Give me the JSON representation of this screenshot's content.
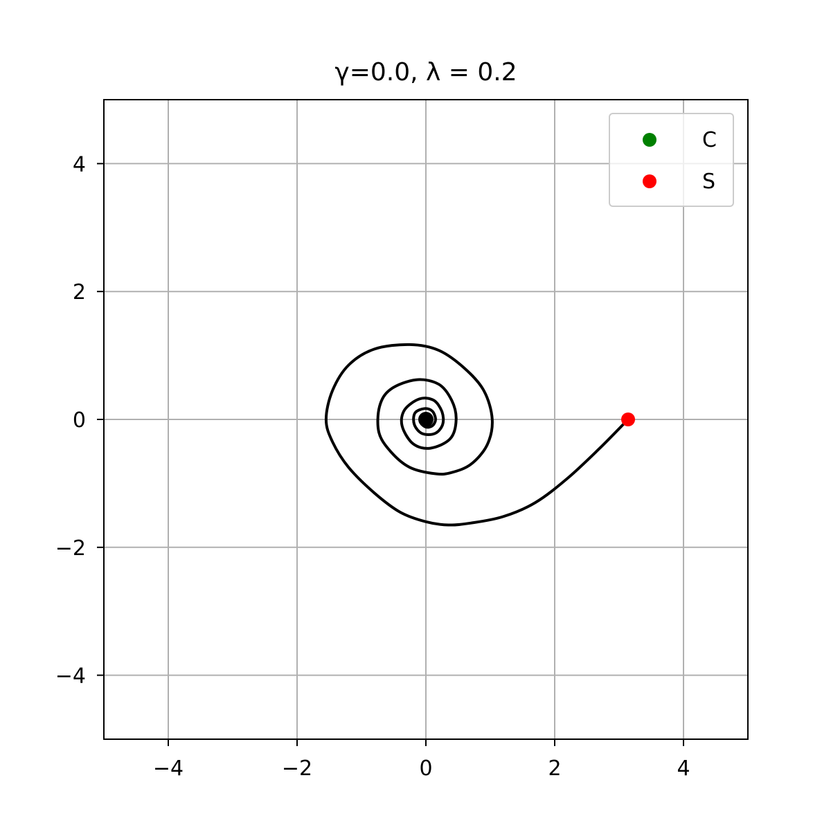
{
  "chart_data": {
    "type": "line",
    "title": "γ=0.0, λ = 0.2",
    "xlabel": "",
    "ylabel": "",
    "xlim": [
      -5,
      5
    ],
    "ylim": [
      -5,
      5
    ],
    "grid": true,
    "legend_position": "top-right",
    "x_ticks": [
      -4,
      -2,
      0,
      2,
      4
    ],
    "x_tick_labels": [
      "−4",
      "−2",
      "0",
      "2",
      "4"
    ],
    "y_ticks": [
      -4,
      -2,
      0,
      2,
      4
    ],
    "y_tick_labels": [
      "−4",
      "−2",
      "0",
      "2",
      "4"
    ],
    "trajectory": {
      "color": "#000000",
      "start": [
        3.14,
        0.0
      ],
      "end": [
        0.0,
        0.0
      ],
      "points": [
        [
          3.14,
          0.0
        ],
        [
          2.7,
          -0.45
        ],
        [
          2.2,
          -0.92
        ],
        [
          1.7,
          -1.3
        ],
        [
          1.2,
          -1.52
        ],
        [
          0.7,
          -1.62
        ],
        [
          0.35,
          -1.65
        ],
        [
          0.0,
          -1.6
        ],
        [
          -0.4,
          -1.45
        ],
        [
          -0.8,
          -1.15
        ],
        [
          -1.2,
          -0.75
        ],
        [
          -1.45,
          -0.35
        ],
        [
          -1.55,
          0.0
        ],
        [
          -1.45,
          0.45
        ],
        [
          -1.2,
          0.85
        ],
        [
          -0.8,
          1.1
        ],
        [
          -0.25,
          1.17
        ],
        [
          0.2,
          1.08
        ],
        [
          0.6,
          0.8
        ],
        [
          0.9,
          0.45
        ],
        [
          1.03,
          0.0
        ],
        [
          0.95,
          -0.4
        ],
        [
          0.7,
          -0.7
        ],
        [
          0.4,
          -0.83
        ],
        [
          0.15,
          -0.85
        ],
        [
          -0.25,
          -0.75
        ],
        [
          -0.55,
          -0.5
        ],
        [
          -0.73,
          -0.2
        ],
        [
          -0.72,
          0.2
        ],
        [
          -0.55,
          0.47
        ],
        [
          -0.15,
          0.62
        ],
        [
          0.2,
          0.55
        ],
        [
          0.4,
          0.3
        ],
        [
          0.47,
          0.0
        ],
        [
          0.38,
          -0.3
        ],
        [
          0.07,
          -0.45
        ],
        [
          -0.2,
          -0.38
        ],
        [
          -0.37,
          -0.1
        ],
        [
          -0.33,
          0.15
        ],
        [
          -0.1,
          0.32
        ],
        [
          0.12,
          0.3
        ],
        [
          0.25,
          0.12
        ],
        [
          0.26,
          -0.08
        ],
        [
          0.14,
          -0.22
        ],
        [
          -0.06,
          -0.22
        ],
        [
          -0.18,
          -0.08
        ],
        [
          -0.17,
          0.1
        ],
        [
          -0.02,
          0.17
        ],
        [
          0.1,
          0.13
        ],
        [
          0.15,
          0.0
        ],
        [
          0.1,
          -0.1
        ],
        [
          0.0,
          -0.12
        ],
        [
          -0.08,
          -0.05
        ],
        [
          -0.07,
          0.05
        ],
        [
          0.0,
          0.08
        ],
        [
          0.05,
          0.04
        ],
        [
          0.05,
          -0.02
        ],
        [
          0.02,
          -0.04
        ],
        [
          0.0,
          0.0
        ]
      ]
    },
    "end_marker": {
      "x": 0.0,
      "y": 0.0,
      "color": "#000000"
    },
    "series": [
      {
        "name": "C",
        "color": "#008000",
        "x": [],
        "y": []
      },
      {
        "name": "S",
        "color": "#ff0000",
        "x": [
          3.14
        ],
        "y": [
          0.0
        ]
      }
    ]
  }
}
